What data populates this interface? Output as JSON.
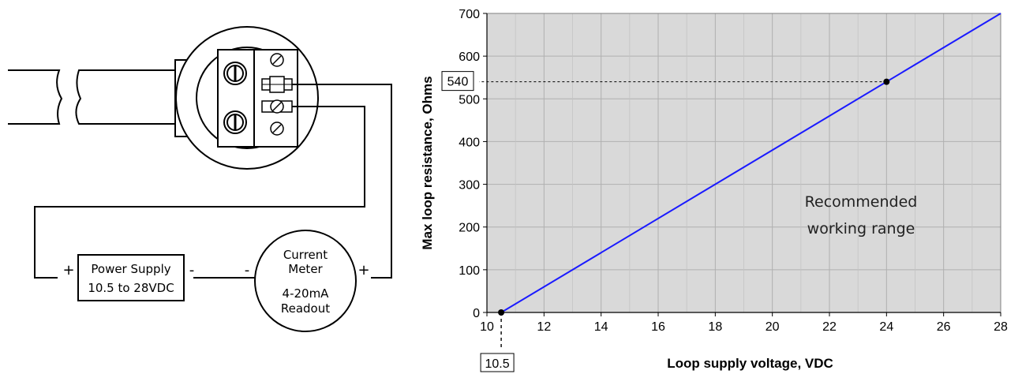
{
  "wiring": {
    "power_supply": {
      "line1": "Power Supply",
      "line2": "10.5 to 28VDC",
      "plus": "+",
      "minus": "-"
    },
    "meter": {
      "line1": "Current",
      "line2": "Meter",
      "line3": "4-20mA",
      "line4": "Readout",
      "plus": "+",
      "minus": "-"
    }
  },
  "chart_data": {
    "type": "line",
    "xlabel": "Loop supply voltage, VDC",
    "ylabel": "Max loop resistance, Ohms",
    "xlim": [
      10,
      28
    ],
    "ylim": [
      0,
      700
    ],
    "x_ticks": [
      "10",
      "12",
      "14",
      "16",
      "18",
      "20",
      "22",
      "24",
      "26",
      "28"
    ],
    "y_ticks": [
      "0",
      "100",
      "200",
      "300",
      "400",
      "500",
      "600",
      "700"
    ],
    "grid": true,
    "series": [
      {
        "x": [
          10.5,
          28
        ],
        "y": [
          0,
          700
        ],
        "color": "#1a1aff"
      }
    ],
    "points": [
      {
        "x": 10.5,
        "y": 0
      },
      {
        "x": 24,
        "y": 540
      }
    ],
    "callout_y": "540",
    "callout_x": "10.5",
    "annotation_line1": "Recommended",
    "annotation_line2": "working range",
    "plot_bg": "#d9d9d9"
  }
}
